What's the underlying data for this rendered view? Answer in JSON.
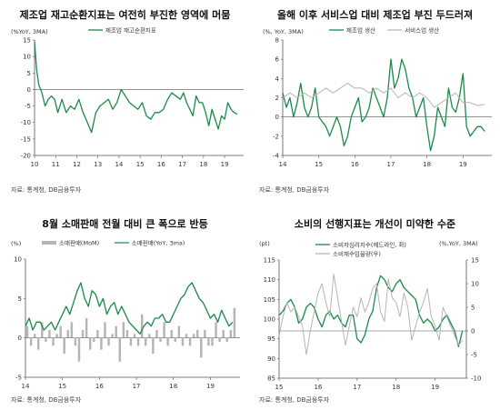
{
  "colors": {
    "green": "#1b8a4a",
    "gray": "#b5b5b5",
    "axis": "#555555"
  },
  "chart_data": [
    {
      "type": "line",
      "title": "제조업 재고순환지표는 여전히 부진한 영역에 머뭄",
      "unit_label": "(%YoY, 3MA)",
      "source": "자료: 통계청, DB금융투자",
      "ylim": [
        -20,
        15
      ],
      "yticks": [
        "15",
        "10",
        "5",
        "0",
        "-5",
        "-10",
        "-15",
        "-20"
      ],
      "yticks_values": [
        15,
        10,
        5,
        0,
        -5,
        -10,
        -15,
        -20
      ],
      "xlim": [
        2010,
        2019.9
      ],
      "xticks": [
        "10",
        "11",
        "12",
        "13",
        "14",
        "15",
        "16",
        "17",
        "18",
        "19"
      ],
      "series": [
        {
          "name": "제조업 재고순환지표",
          "color": "#1b8a4a",
          "x": [
            2010.0,
            2010.1,
            2010.2,
            2010.35,
            2010.5,
            2010.65,
            2010.8,
            2010.95,
            2011.1,
            2011.3,
            2011.5,
            2011.7,
            2011.9,
            2012.1,
            2012.3,
            2012.5,
            2012.7,
            2012.9,
            2013.1,
            2013.3,
            2013.5,
            2013.7,
            2013.9,
            2014.1,
            2014.3,
            2014.5,
            2014.7,
            2014.9,
            2015.1,
            2015.3,
            2015.5,
            2015.7,
            2015.9,
            2016.1,
            2016.3,
            2016.5,
            2016.7,
            2016.9,
            2017.05,
            2017.2,
            2017.35,
            2017.5,
            2017.65,
            2017.8,
            2017.95,
            2018.1,
            2018.25,
            2018.4,
            2018.55,
            2018.7,
            2018.85,
            2019.0,
            2019.15,
            2019.3,
            2019.45,
            2019.6
          ],
          "y": [
            14.5,
            6,
            1.5,
            -1,
            -5,
            -3,
            -2,
            -3,
            -7,
            -3,
            -7,
            -5,
            -6,
            -3,
            -7,
            -10,
            -13,
            -7,
            -5,
            -4,
            -3,
            -6,
            -4,
            0,
            -2,
            -4,
            -5,
            -6,
            -4,
            -8,
            -9,
            -7,
            -7,
            -6,
            -3,
            -1,
            -2,
            -3,
            -1,
            -4,
            -6,
            -8,
            -2,
            -4,
            -4,
            -7,
            -11,
            -6,
            -9,
            -12,
            -8,
            -9,
            -4,
            -6,
            -7,
            -7.5
          ]
        }
      ]
    },
    {
      "type": "line",
      "title": "올해 이후 서비스업 대비 제조업 부진 두드러져",
      "unit_label": "(%, YoY, 3MA)",
      "source": "자료: 통계청, DB금융투자",
      "ylim": [
        -4,
        8
      ],
      "yticks": [
        "8",
        "6",
        "4",
        "2",
        "0",
        "-2",
        "-4"
      ],
      "yticks_values": [
        8,
        6,
        4,
        2,
        0,
        -2,
        -4
      ],
      "xlim": [
        2014,
        2019.8
      ],
      "xticks": [
        "14",
        "15",
        "16",
        "17",
        "18",
        "19"
      ],
      "series": [
        {
          "name": "제조업 생산",
          "color": "#1b8a4a",
          "x": [
            2014.0,
            2014.1,
            2014.2,
            2014.3,
            2014.4,
            2014.5,
            2014.6,
            2014.7,
            2014.8,
            2014.9,
            2015.0,
            2015.1,
            2015.2,
            2015.3,
            2015.4,
            2015.5,
            2015.6,
            2015.7,
            2015.8,
            2015.9,
            2016.0,
            2016.1,
            2016.2,
            2016.3,
            2016.4,
            2016.5,
            2016.6,
            2016.7,
            2016.8,
            2016.9,
            2017.0,
            2017.1,
            2017.2,
            2017.3,
            2017.4,
            2017.5,
            2017.6,
            2017.7,
            2017.8,
            2017.9,
            2018.0,
            2018.1,
            2018.2,
            2018.3,
            2018.4,
            2018.5,
            2018.6,
            2018.7,
            2018.8,
            2018.9,
            2019.0,
            2019.1,
            2019.2,
            2019.3,
            2019.4,
            2019.5,
            2019.6
          ],
          "y": [
            2.5,
            1,
            2,
            0,
            1.5,
            3.5,
            1,
            0,
            1,
            3,
            0,
            -0.5,
            -1,
            -2,
            -1,
            0,
            -1,
            -3,
            -2,
            0,
            1,
            2,
            -0.5,
            0,
            1,
            3,
            2,
            1,
            0,
            2,
            6,
            3,
            4,
            6,
            5,
            3,
            2,
            0,
            1,
            2,
            -1,
            -3.5,
            -2,
            1,
            0,
            -1,
            3,
            1,
            0.5,
            2,
            4.5,
            -1,
            -2,
            -1.5,
            -1,
            -1,
            -1.5
          ]
        },
        {
          "name": "서비스업 생산",
          "color": "#b5b5b5",
          "x": [
            2014.0,
            2014.2,
            2014.4,
            2014.6,
            2014.8,
            2015.0,
            2015.2,
            2015.4,
            2015.6,
            2015.8,
            2016.0,
            2016.2,
            2016.4,
            2016.6,
            2016.8,
            2017.0,
            2017.2,
            2017.4,
            2017.6,
            2017.8,
            2018.0,
            2018.2,
            2018.4,
            2018.6,
            2018.8,
            2019.0,
            2019.2,
            2019.4,
            2019.6
          ],
          "y": [
            2,
            2.5,
            2,
            2.5,
            2,
            2.5,
            3,
            2.5,
            3,
            3.5,
            3,
            3,
            2.5,
            3,
            2.5,
            3,
            2,
            2.5,
            2,
            2.5,
            2,
            1,
            1.5,
            2,
            2.5,
            1.5,
            1.5,
            1.2,
            1.3
          ]
        }
      ]
    },
    {
      "type": "bar",
      "title": "8월 소매판매 전월 대비 큰 폭으로 반등",
      "unit_label": "(%)",
      "source": "자료: 통계청, DB금융투자",
      "ylim": [
        -5,
        10
      ],
      "yticks": [
        "10",
        "5",
        "0",
        "-5"
      ],
      "yticks_values": [
        10,
        5,
        0,
        -5
      ],
      "xlim": [
        2014,
        2019.8
      ],
      "xticks": [
        "14",
        "15",
        "16",
        "17",
        "18",
        "19"
      ],
      "bar_series": {
        "name": "소매판매(MoM)",
        "color": "#b5b5b5",
        "x": [
          2014.05,
          2014.15,
          2014.25,
          2014.35,
          2014.45,
          2014.55,
          2014.65,
          2014.75,
          2014.85,
          2014.95,
          2015.05,
          2015.15,
          2015.25,
          2015.35,
          2015.45,
          2015.55,
          2015.65,
          2015.75,
          2015.85,
          2015.95,
          2016.05,
          2016.15,
          2016.25,
          2016.35,
          2016.45,
          2016.55,
          2016.65,
          2016.75,
          2016.85,
          2016.95,
          2017.05,
          2017.15,
          2017.25,
          2017.35,
          2017.45,
          2017.55,
          2017.65,
          2017.75,
          2017.85,
          2017.95,
          2018.05,
          2018.15,
          2018.25,
          2018.35,
          2018.45,
          2018.55,
          2018.65,
          2018.75,
          2018.85,
          2018.95,
          2019.05,
          2019.15,
          2019.25,
          2019.35,
          2019.45,
          2019.55,
          2019.65
        ],
        "values": [
          1.5,
          -1,
          0.5,
          -1.5,
          2,
          -0.5,
          1,
          -1,
          0.5,
          1.5,
          -2,
          1,
          2,
          -1,
          -3,
          1,
          2.5,
          -1.5,
          -0.5,
          1,
          -1.5,
          2,
          -1,
          0.5,
          1.5,
          -3,
          2,
          1,
          -1,
          0.5,
          -1,
          3,
          -1,
          0.5,
          -2,
          1,
          -0.5,
          2,
          -1,
          1,
          -0.5,
          1.5,
          -1,
          0.5,
          -1,
          0.5,
          1,
          -2.5,
          1,
          -1,
          -1,
          2,
          -0.5,
          1,
          -0.5,
          1,
          3.8
        ]
      },
      "series": [
        {
          "name": "소매판매(YoY, 3ma)",
          "color": "#1b8a4a",
          "x": [
            2014.0,
            2014.1,
            2014.2,
            2014.3,
            2014.4,
            2014.5,
            2014.6,
            2014.7,
            2014.8,
            2014.9,
            2015.0,
            2015.1,
            2015.2,
            2015.3,
            2015.4,
            2015.5,
            2015.6,
            2015.7,
            2015.8,
            2015.9,
            2016.0,
            2016.1,
            2016.2,
            2016.3,
            2016.4,
            2016.5,
            2016.6,
            2016.7,
            2016.8,
            2016.9,
            2017.0,
            2017.1,
            2017.2,
            2017.3,
            2017.4,
            2017.5,
            2017.6,
            2017.7,
            2017.8,
            2017.9,
            2018.0,
            2018.1,
            2018.2,
            2018.3,
            2018.4,
            2018.5,
            2018.6,
            2018.7,
            2018.8,
            2018.9,
            2019.0,
            2019.1,
            2019.2,
            2019.3,
            2019.4,
            2019.5,
            2019.6
          ],
          "y": [
            1.5,
            2.5,
            1,
            2,
            2,
            1,
            1.5,
            2,
            1,
            2,
            3,
            4,
            3,
            4.5,
            6,
            7,
            5,
            4,
            6,
            5.5,
            4,
            5,
            3,
            4,
            4.5,
            3,
            4,
            3,
            2,
            1.5,
            1,
            0.5,
            1.5,
            2,
            1.5,
            2.5,
            2.5,
            3,
            2,
            2,
            3,
            4,
            5,
            5.5,
            6.5,
            7,
            6,
            5,
            4.5,
            3.5,
            2.5,
            3,
            2,
            3.5,
            2.5,
            1.5,
            2
          ]
        }
      ]
    },
    {
      "type": "line",
      "title": "소비의 선행지표는 개선이 미약한 수준",
      "unit_label_left": "(pt)",
      "unit_label_right": "(%,YoY, 3MA)",
      "source": "자료: 통계청, DB금융투자",
      "ylim": [
        85,
        115
      ],
      "yticks": [
        "115",
        "110",
        "105",
        "100",
        "95",
        "90",
        "85"
      ],
      "yticks_values": [
        115,
        110,
        105,
        100,
        95,
        90,
        85
      ],
      "y2lim": [
        -10,
        15
      ],
      "y2ticks": [
        "15",
        "10",
        "5",
        "0",
        "-5",
        "-10"
      ],
      "y2ticks_values": [
        15,
        10,
        5,
        0,
        -5,
        -10
      ],
      "xlim": [
        2015,
        2019.8
      ],
      "xticks": [
        "15",
        "16",
        "17",
        "18",
        "19"
      ],
      "series": [
        {
          "name": "소비자심리지수(헤드라인, 좌)",
          "color": "#1b8a4a",
          "axis": "left",
          "x": [
            2015.0,
            2015.1,
            2015.2,
            2015.3,
            2015.4,
            2015.5,
            2015.6,
            2015.7,
            2015.8,
            2015.9,
            2016.0,
            2016.1,
            2016.2,
            2016.3,
            2016.4,
            2016.5,
            2016.6,
            2016.7,
            2016.8,
            2016.9,
            2017.0,
            2017.1,
            2017.2,
            2017.3,
            2017.4,
            2017.5,
            2017.6,
            2017.7,
            2017.8,
            2017.9,
            2018.0,
            2018.1,
            2018.2,
            2018.3,
            2018.4,
            2018.5,
            2018.6,
            2018.7,
            2018.8,
            2018.9,
            2019.0,
            2019.1,
            2019.2,
            2019.3,
            2019.4,
            2019.5,
            2019.6,
            2019.7
          ],
          "y": [
            101,
            102,
            104,
            105,
            103,
            99,
            100,
            103,
            104,
            103,
            100,
            98,
            101,
            102,
            100,
            101,
            99,
            98,
            101,
            101,
            95,
            94,
            96,
            100,
            102,
            108,
            111,
            110,
            108,
            107,
            109,
            110,
            108,
            107,
            106,
            105,
            101,
            99,
            100,
            99,
            97,
            98,
            100,
            101,
            99,
            97,
            93,
            97
          ]
        },
        {
          "name": "소비재수입물량(우)",
          "color": "#b5b5b5",
          "axis": "right",
          "x": [
            2015.0,
            2015.1,
            2015.2,
            2015.3,
            2015.4,
            2015.5,
            2015.6,
            2015.7,
            2015.8,
            2015.9,
            2016.0,
            2016.1,
            2016.2,
            2016.3,
            2016.4,
            2016.5,
            2016.6,
            2016.7,
            2016.8,
            2016.9,
            2017.0,
            2017.1,
            2017.2,
            2017.3,
            2017.4,
            2017.5,
            2017.6,
            2017.7,
            2017.8,
            2017.9,
            2018.0,
            2018.1,
            2018.2,
            2018.3,
            2018.4,
            2018.5,
            2018.6,
            2018.7,
            2018.8,
            2018.9,
            2019.0,
            2019.1,
            2019.2,
            2019.3,
            2019.4,
            2019.5,
            2019.6,
            2019.7
          ],
          "y": [
            -1,
            3,
            6,
            4,
            5,
            3,
            1,
            -5,
            0,
            4,
            8,
            10,
            6,
            3,
            12,
            7,
            2,
            -3,
            1,
            5,
            3,
            7,
            4,
            6,
            9,
            10,
            4,
            2,
            11,
            7,
            6,
            3,
            8,
            5,
            -2,
            1,
            4,
            6,
            9,
            3,
            1,
            -2,
            5,
            3,
            1,
            -1,
            -3,
            -2
          ]
        }
      ]
    }
  ]
}
